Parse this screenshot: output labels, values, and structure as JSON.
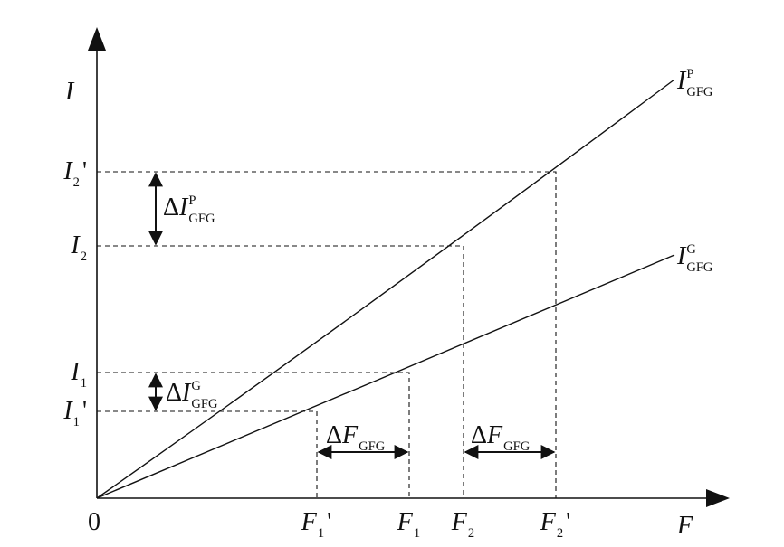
{
  "axes": {
    "origin": "0",
    "y_label": "I",
    "x_label": "F"
  },
  "curves": [
    {
      "base": "I",
      "sup": "P",
      "sub": "GFG"
    },
    {
      "base": "I",
      "sup": "G",
      "sub": "GFG"
    }
  ],
  "y_marks": [
    {
      "base": "I",
      "sub": "2",
      "prime": "'"
    },
    {
      "base": "I",
      "sub": "2"
    },
    {
      "base": "I",
      "sub": "1"
    },
    {
      "base": "I",
      "sub": "1",
      "prime": "'"
    }
  ],
  "x_marks": [
    {
      "base": "F",
      "sub": "1",
      "prime": "'"
    },
    {
      "base": "F",
      "sub": "1"
    },
    {
      "base": "F",
      "sub": "2"
    },
    {
      "base": "F",
      "sub": "2",
      "prime": "'"
    }
  ],
  "deltas": [
    {
      "delta": "Δ",
      "base": "I",
      "sup": "P",
      "sub": "GFG"
    },
    {
      "delta": "Δ",
      "base": "I",
      "sup": "G",
      "sub": "GFG"
    },
    {
      "delta": "Δ",
      "base": "F",
      "sub": "GFG"
    },
    {
      "delta": "Δ",
      "base": "F",
      "sub": "GFG"
    }
  ]
}
